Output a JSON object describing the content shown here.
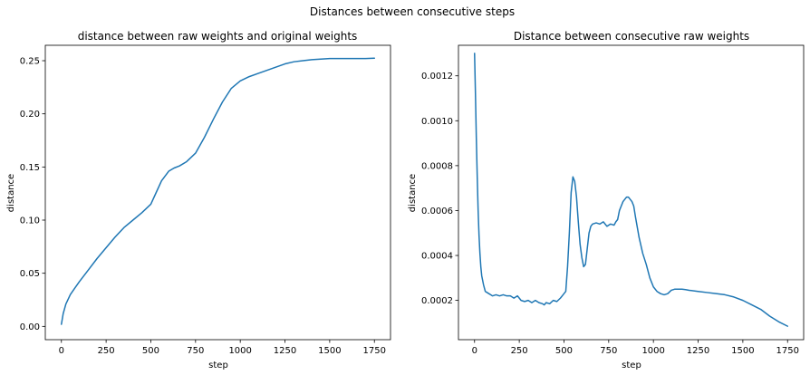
{
  "figure": {
    "suptitle": "Distances between consecutive steps"
  },
  "colors": {
    "series": "#1f77b4"
  },
  "chart_data": [
    {
      "type": "line",
      "title": "distance between raw weights and original weights",
      "xlabel": "step",
      "ylabel": "distance",
      "xlim": [
        -90,
        1840
      ],
      "ylim": [
        -0.0125,
        0.2645
      ],
      "xticks": [
        0,
        250,
        500,
        750,
        1000,
        1250,
        1500,
        1750
      ],
      "xtick_labels": [
        "0",
        "250",
        "500",
        "750",
        "1000",
        "1250",
        "1500",
        "1750"
      ],
      "yticks": [
        0.0,
        0.05,
        0.1,
        0.15,
        0.2,
        0.25
      ],
      "ytick_labels": [
        "0.00",
        "0.05",
        "0.10",
        "0.15",
        "0.20",
        "0.25"
      ],
      "grid": false,
      "series": [
        {
          "x": [
            0,
            10,
            25,
            50,
            75,
            100,
            150,
            200,
            250,
            300,
            350,
            400,
            450,
            500,
            530,
            560,
            600,
            630,
            660,
            700,
            750,
            800,
            850,
            900,
            950,
            1000,
            1050,
            1100,
            1150,
            1200,
            1250,
            1300,
            1350,
            1400,
            1450,
            1500,
            1550,
            1600,
            1650,
            1700,
            1750
          ],
          "y": [
            0.002,
            0.012,
            0.021,
            0.03,
            0.036,
            0.042,
            0.053,
            0.064,
            0.074,
            0.084,
            0.093,
            0.1,
            0.107,
            0.115,
            0.126,
            0.137,
            0.146,
            0.149,
            0.151,
            0.155,
            0.163,
            0.178,
            0.195,
            0.211,
            0.224,
            0.231,
            0.235,
            0.238,
            0.241,
            0.244,
            0.247,
            0.249,
            0.25,
            0.251,
            0.2515,
            0.252,
            0.252,
            0.252,
            0.252,
            0.252,
            0.2523
          ]
        }
      ]
    },
    {
      "type": "line",
      "title": "Distance between consecutive raw weights",
      "xlabel": "step",
      "ylabel": "distance",
      "xlim": [
        -90,
        1840
      ],
      "ylim": [
        2.5e-05,
        0.001336
      ],
      "xticks": [
        0,
        250,
        500,
        750,
        1000,
        1250,
        1500,
        1750
      ],
      "xtick_labels": [
        "0",
        "250",
        "500",
        "750",
        "1000",
        "1250",
        "1500",
        "1750"
      ],
      "yticks": [
        0.0002,
        0.0004,
        0.0006,
        0.0008,
        0.001,
        0.0012
      ],
      "ytick_labels": [
        "0.0002",
        "0.0004",
        "0.0006",
        "0.0008",
        "0.0010",
        "0.0012"
      ],
      "grid": false,
      "series": [
        {
          "x": [
            0,
            5,
            10,
            15,
            20,
            25,
            30,
            35,
            40,
            50,
            60,
            70,
            80,
            90,
            100,
            120,
            140,
            160,
            180,
            200,
            220,
            240,
            250,
            260,
            280,
            300,
            320,
            340,
            360,
            380,
            390,
            400,
            420,
            440,
            460,
            480,
            490,
            500,
            510,
            520,
            530,
            540,
            550,
            560,
            570,
            580,
            590,
            600,
            610,
            620,
            630,
            640,
            650,
            660,
            680,
            700,
            720,
            740,
            760,
            780,
            790,
            800,
            810,
            820,
            830,
            840,
            850,
            860,
            870,
            880,
            890,
            900,
            920,
            940,
            960,
            980,
            1000,
            1020,
            1040,
            1060,
            1080,
            1100,
            1120,
            1140,
            1160,
            1180,
            1200,
            1250,
            1300,
            1350,
            1400,
            1450,
            1500,
            1550,
            1600,
            1650,
            1700,
            1750
          ],
          "y": [
            0.0013,
            0.00112,
            0.00092,
            0.00075,
            0.0006,
            0.00049,
            0.00041,
            0.00035,
            0.00031,
            0.00027,
            0.00024,
            0.000235,
            0.00023,
            0.000225,
            0.00022,
            0.000225,
            0.00022,
            0.000225,
            0.00022,
            0.00022,
            0.00021,
            0.00022,
            0.00021,
            0.0002,
            0.000195,
            0.0002,
            0.00019,
            0.0002,
            0.00019,
            0.000185,
            0.00018,
            0.00019,
            0.000185,
            0.0002,
            0.000195,
            0.00021,
            0.00022,
            0.00023,
            0.00024,
            0.00035,
            0.0005,
            0.00068,
            0.00075,
            0.00073,
            0.00066,
            0.00055,
            0.00045,
            0.00039,
            0.00035,
            0.00036,
            0.00043,
            0.0005,
            0.00053,
            0.00054,
            0.000545,
            0.00054,
            0.00055,
            0.00053,
            0.00054,
            0.000535,
            0.00055,
            0.00056,
            0.0006,
            0.00062,
            0.00064,
            0.00065,
            0.00066,
            0.00066,
            0.00065,
            0.00064,
            0.00062,
            0.00057,
            0.00048,
            0.00041,
            0.00036,
            0.0003,
            0.00026,
            0.00024,
            0.00023,
            0.000225,
            0.00023,
            0.000245,
            0.00025,
            0.00025,
            0.00025,
            0.000248,
            0.000245,
            0.00024,
            0.000235,
            0.00023,
            0.000225,
            0.000215,
            0.0002,
            0.00018,
            0.00016,
            0.00013,
            0.000105,
            8.5e-05
          ]
        }
      ]
    }
  ]
}
